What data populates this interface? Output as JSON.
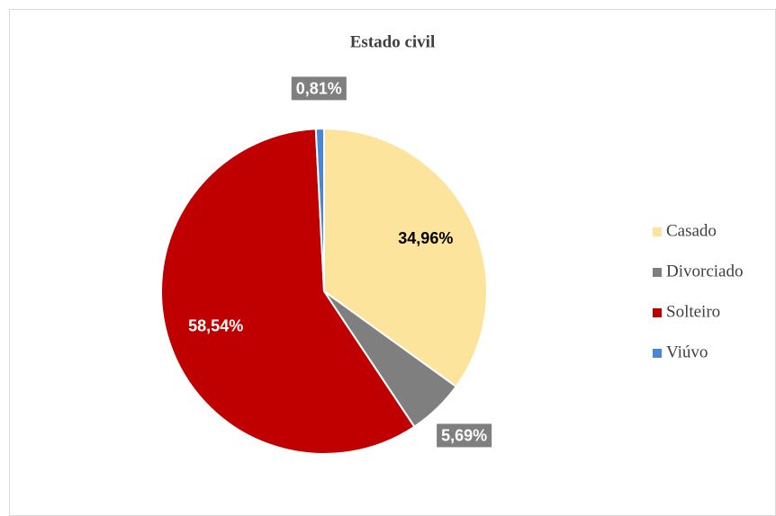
{
  "chart_data": {
    "type": "pie",
    "title": "Estado civil",
    "categories": [
      "Casado",
      "Divorciado",
      "Solteiro",
      "Viúvo"
    ],
    "values": [
      34.96,
      5.69,
      58.54,
      0.81
    ],
    "value_labels": [
      "34,96%",
      "5,69%",
      "58,54%",
      "0,81%"
    ],
    "colors": [
      "#fde49c",
      "#7f7f7f",
      "#c00000",
      "#4a86d6"
    ],
    "legend": "right"
  }
}
